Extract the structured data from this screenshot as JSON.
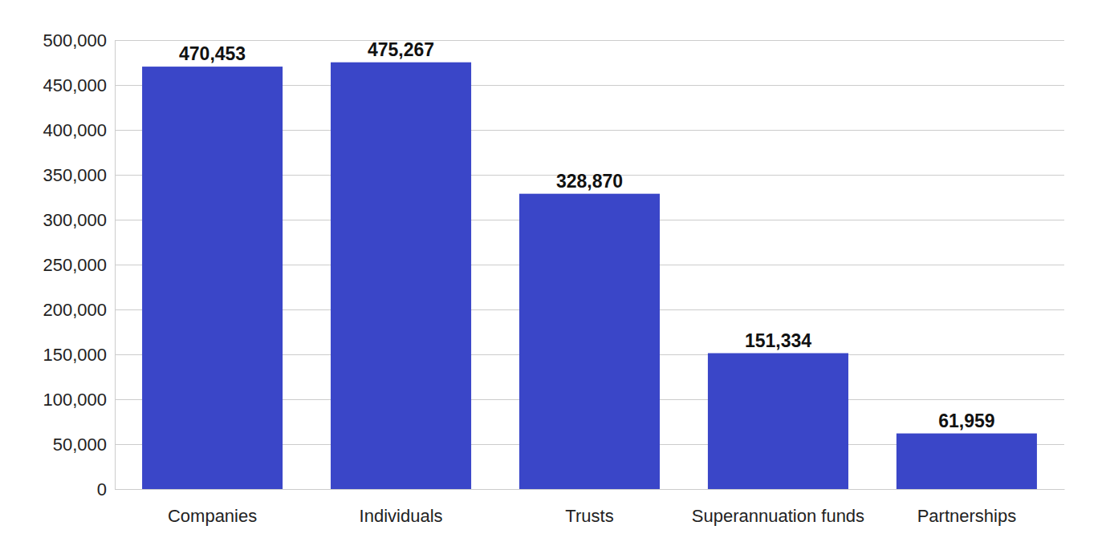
{
  "chart_data": {
    "type": "bar",
    "categories": [
      "Companies",
      "Individuals",
      "Trusts",
      "Superannuation funds",
      "Partnerships"
    ],
    "values": [
      470453,
      475267,
      328870,
      151334,
      61959
    ],
    "value_labels": [
      "470,453",
      "475,267",
      "328,870",
      "151,334",
      "61,959"
    ],
    "color": "#3a46c8",
    "ylim": [
      0,
      500000
    ],
    "yticks": [
      0,
      {
        "value": 50000,
        "label": "50,000"
      },
      {
        "value": 100000,
        "label": "100,000"
      },
      {
        "value": 150000,
        "label": "150,000"
      },
      {
        "value": 200000,
        "label": "200,000"
      },
      {
        "value": 250000,
        "label": "250,000"
      },
      {
        "value": 300000,
        "label": "300,000"
      },
      {
        "value": 350000,
        "label": "350,000"
      },
      {
        "value": 400000,
        "label": "400,000"
      },
      {
        "value": 450000,
        "label": "450,000"
      },
      {
        "value": 500000,
        "label": "500,000"
      }
    ],
    "grid": true,
    "data_labels": true
  }
}
